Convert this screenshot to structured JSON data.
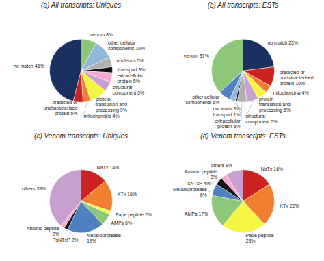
{
  "chart_data": [
    {
      "type": "pie",
      "title": "(a) All transcripts: Uniques",
      "categories": [
        "venom 8%",
        "other cellular\ncomponents 10%",
        "nucleous 5%",
        "transport 3%",
        "extracellular\nprotein 5%",
        "structural\ncomponent 5%",
        "protein\ntranslation and\nprocessing 9%",
        "mitochondria 4%",
        "predicted or\nuncharacterised\nprotein 5%",
        "no match 46%"
      ],
      "values": [
        8,
        10,
        5,
        3,
        5,
        5,
        9,
        4,
        5,
        46
      ],
      "colors": [
        "#8dc87a",
        "#90b8d8",
        "#b0b0b0",
        "#111111",
        "#f9a8d0",
        "#c8a0d0",
        "#f5f542",
        "#f08030",
        "#cc2222",
        "#1a3060"
      ]
    },
    {
      "type": "pie",
      "title": "(b) All transcripts: ESTs",
      "categories": [
        "no match 23%",
        "predicted or\nuncharacterised\nprotein 10%",
        "mitochondria 4%",
        "protein\ntranslation and\nprocessing 5%",
        "structural\ncomponent 6%",
        "extracellular\nprotein 5%",
        "transport 1%",
        "nucleous 3%",
        "other cellular\ncomponents 6%",
        "venom 37%"
      ],
      "values": [
        23,
        10,
        4,
        5,
        6,
        5,
        1,
        3,
        6,
        37
      ],
      "colors": [
        "#1a3060",
        "#cc2222",
        "#f08030",
        "#f5f542",
        "#c8a0d0",
        "#b0b0b0",
        "#111111",
        "#90b8d8",
        "#5080c0",
        "#8dc87a"
      ]
    },
    {
      "type": "pie",
      "title": "(c) Venom transcripts: Uniques",
      "categories": [
        "NaTx 14%",
        "KTx 16%",
        "Pape peptide 2%",
        "AMPs 6%",
        "Metalloprotease\n19%",
        "TsNTxP 2%",
        "Anionic peptide\n2%",
        "others 39%"
      ],
      "values": [
        14,
        16,
        2,
        6,
        19,
        2,
        2,
        39
      ],
      "colors": [
        "#cc2222",
        "#f08030",
        "#f5f542",
        "#8dc87a",
        "#5080c0",
        "#111111",
        "#f9a8d0",
        "#c8a0d0"
      ]
    },
    {
      "type": "pie",
      "title": "(d) Venom transcripts: ESTs",
      "categories": [
        "NaTx 16%",
        "KTx 22%",
        "Pape peptide\n23%",
        "AMPs 17%",
        "Metalloprotease\n6%",
        "TsNTxP 4%",
        "Anionic peptide\n3%",
        "others 9%"
      ],
      "values": [
        16,
        22,
        23,
        17,
        6,
        4,
        3,
        9
      ],
      "colors": [
        "#cc2222",
        "#f08030",
        "#f5f542",
        "#8dc87a",
        "#5080c0",
        "#111111",
        "#f9a8d0",
        "#c8a0d0"
      ]
    }
  ]
}
